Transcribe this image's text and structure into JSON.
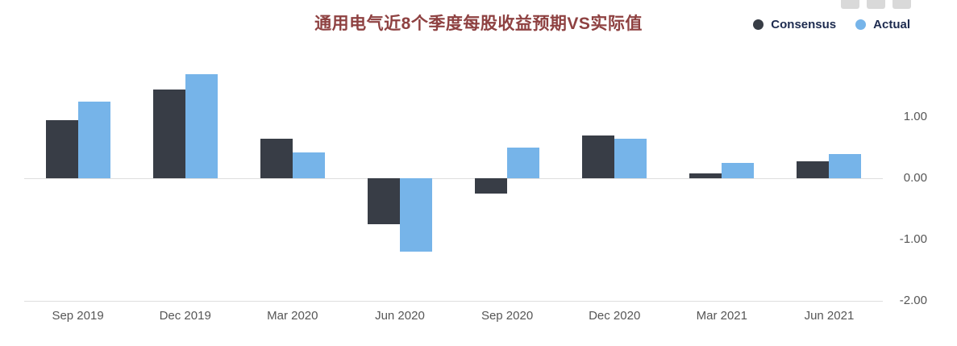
{
  "header": {
    "title": "通用电气近8个季度每股收益预期VS实际值",
    "legend": [
      {
        "label": "Consensus",
        "color": "#383d46"
      },
      {
        "label": "Actual",
        "color": "#76b4e9"
      }
    ]
  },
  "toolbar": {
    "buttons": [
      "toolbar-button-1",
      "toolbar-button-2",
      "toolbar-button-3"
    ]
  },
  "chart_data": {
    "type": "bar",
    "title": "通用电气近8个季度每股收益预期VS实际值",
    "categories": [
      "Sep 2019",
      "Dec 2019",
      "Mar 2020",
      "Jun 2020",
      "Sep 2020",
      "Dec 2020",
      "Mar 2021",
      "Jun 2021"
    ],
    "series": [
      {
        "name": "Consensus",
        "color": "#383d46",
        "values": [
          0.95,
          1.45,
          0.65,
          -0.75,
          -0.25,
          0.7,
          0.08,
          0.28
        ]
      },
      {
        "name": "Actual",
        "color": "#76b4e9",
        "values": [
          1.25,
          1.7,
          0.42,
          -1.2,
          0.5,
          0.65,
          0.25,
          0.4
        ]
      }
    ],
    "xlabel": "",
    "ylabel": "",
    "ylim": [
      -2.0,
      2.0
    ],
    "y_ticks": [
      {
        "value": 1,
        "label": "1.00"
      },
      {
        "value": 0,
        "label": "0.00"
      },
      {
        "value": -1,
        "label": "-1.00"
      },
      {
        "value": -2,
        "label": "-2.00"
      }
    ],
    "gridline_values": [
      0,
      -2
    ],
    "grid": true,
    "legend_position": "top-right",
    "y_axis_side": "right",
    "x_axis_side": "bottom"
  }
}
